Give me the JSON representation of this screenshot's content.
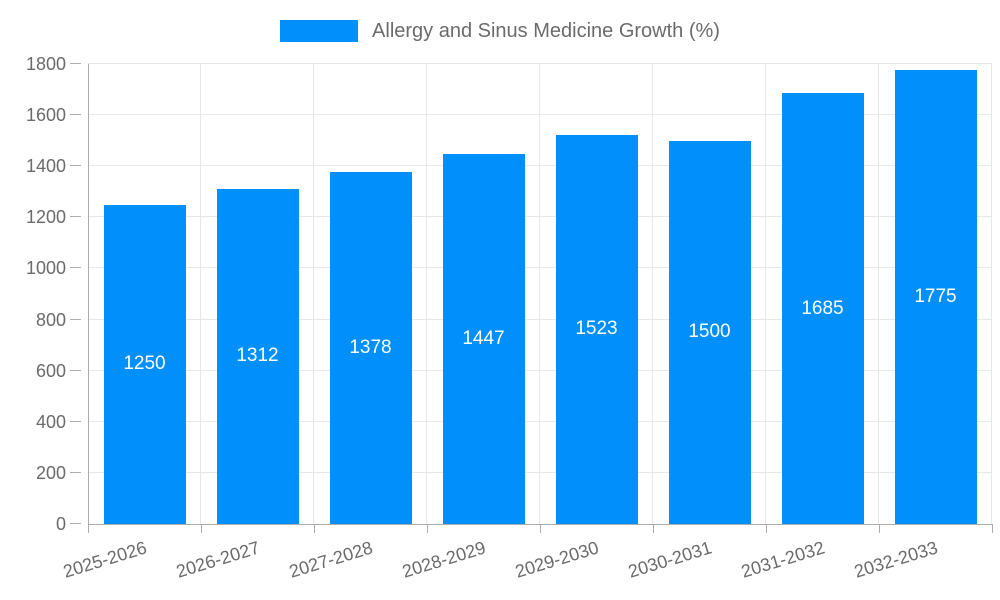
{
  "chart_data": {
    "type": "bar",
    "title": "Allergy and Sinus Medicine Growth (%)",
    "categories": [
      "2025-2026",
      "2026-2027",
      "2027-2028",
      "2028-2029",
      "2029-2030",
      "2030-2031",
      "2031-2032",
      "2032-2033"
    ],
    "values": [
      1250,
      1312,
      1378,
      1447,
      1523,
      1500,
      1685,
      1775
    ],
    "xlabel": "",
    "ylabel": "",
    "ylim": [
      0,
      1800
    ],
    "yticks": [
      0,
      200,
      400,
      600,
      800,
      1000,
      1200,
      1400,
      1600,
      1800
    ],
    "x_label_rotation_deg": -17,
    "grid": true,
    "legend_position": "top",
    "bar_color": "#008FFB",
    "bar_label_color": "#FFFFFF"
  },
  "colors": {
    "background": "#FFFFFF",
    "grid_line": "#E7E7E7",
    "axis_line": "#ACACAC",
    "label_text": "#6B6B6B"
  }
}
